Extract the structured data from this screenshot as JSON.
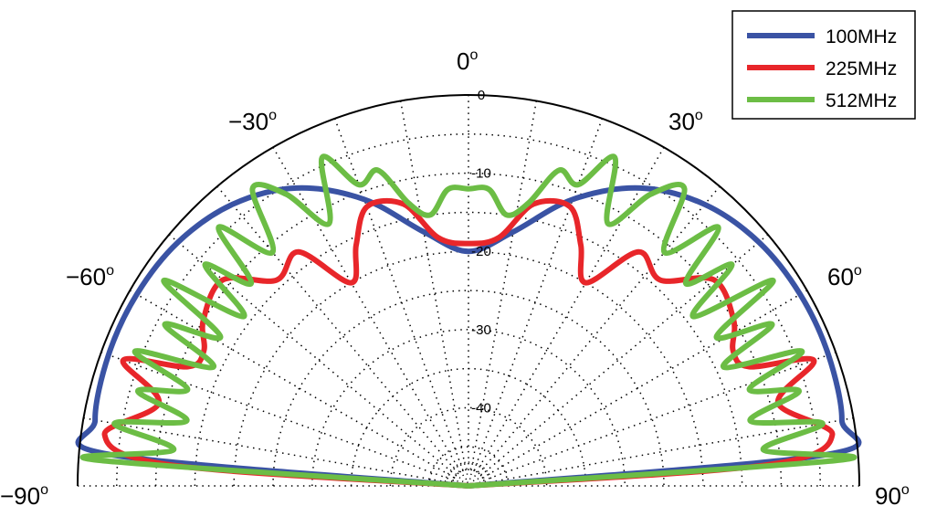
{
  "chart_data": {
    "type": "line",
    "subtype": "polar-half",
    "angle_ticks": [
      {
        "value": -90,
        "label": "-90"
      },
      {
        "value": -60,
        "label": "-60"
      },
      {
        "value": -30,
        "label": "-30"
      },
      {
        "value": 0,
        "label": "0"
      },
      {
        "value": 30,
        "label": "30"
      },
      {
        "value": 60,
        "label": "60"
      },
      {
        "value": 90,
        "label": "90"
      }
    ],
    "angle_unit": "o",
    "radial_ticks": [
      {
        "value": 0,
        "label": "0"
      },
      {
        "value": -10,
        "label": "-10"
      },
      {
        "value": -20,
        "label": "-20"
      },
      {
        "value": -30,
        "label": "-30"
      },
      {
        "value": -40,
        "label": "-40"
      }
    ],
    "r_range": [
      -50,
      0
    ],
    "theta_range": [
      -90,
      90
    ],
    "grid": true,
    "legend_position": "top-right",
    "series": [
      {
        "name": "100MHz",
        "color": "#3a53a4",
        "angles": [
          -90,
          -85,
          -80,
          -70,
          -60,
          -50,
          -40,
          -30,
          -20,
          -10,
          0,
          10,
          20,
          30,
          40,
          50,
          60,
          70,
          80,
          85,
          90
        ],
        "values": [
          -50,
          -4,
          -1.5,
          -1,
          -1,
          -1.5,
          -3,
          -6,
          -11,
          -17,
          -20,
          -17,
          -11,
          -6,
          -3,
          -1.5,
          -1,
          -1,
          -1.5,
          -4,
          -50
        ]
      },
      {
        "name": "225MHz",
        "color": "#e8262a",
        "angles": [
          -90,
          -86,
          -82,
          -75,
          -70,
          -67,
          -63,
          -58,
          -50,
          -43,
          -36,
          -30,
          -25,
          -20,
          -13,
          -7,
          0,
          7,
          13,
          20,
          25,
          -25,
          30,
          36,
          43,
          50,
          58,
          63,
          67,
          70,
          75,
          82,
          86,
          90
        ],
        "values": [
          -50,
          -12,
          -3,
          -9,
          -3,
          -11,
          -12,
          -10,
          -9,
          -14,
          -13,
          -20,
          -16,
          -12,
          -13,
          -18,
          -19,
          -18,
          -13,
          -12,
          -16,
          -16,
          -20,
          -13,
          -14,
          -9,
          -10,
          -12,
          -11,
          -3,
          -9,
          -3,
          -12,
          -50
        ],
        "note": ""
      },
      {
        "name": "512MHz",
        "color": "#6cbd45",
        "angles": [
          -90,
          -86,
          -83,
          -80,
          -77,
          -74,
          -71,
          -68,
          -65,
          -62,
          -59,
          -56,
          -53,
          -50,
          -47,
          -44,
          -40,
          -36,
          -32,
          -28,
          -24,
          -20,
          -16,
          -12,
          -8,
          -4,
          0,
          4,
          8,
          12,
          16,
          20,
          24,
          28,
          32,
          36,
          40,
          44,
          47,
          50,
          53,
          56,
          59,
          62,
          65,
          68,
          71,
          74,
          77,
          80,
          83,
          86,
          90
        ],
        "values": [
          -50,
          -2,
          -12,
          -4,
          -13,
          -6,
          -12,
          -4,
          -14,
          -6,
          -13,
          -3,
          -14,
          -6,
          -12,
          -4,
          -11,
          -3,
          -6,
          -12,
          -4,
          -9,
          -8,
          -13,
          -15,
          -12,
          -12,
          -12,
          -15,
          -13,
          -8,
          -9,
          -4,
          -12,
          -6,
          -3,
          -11,
          -4,
          -12,
          -6,
          -14,
          -3,
          -13,
          -6,
          -14,
          -4,
          -12,
          -6,
          -13,
          -4,
          -12,
          -2,
          -50
        ]
      }
    ]
  }
}
